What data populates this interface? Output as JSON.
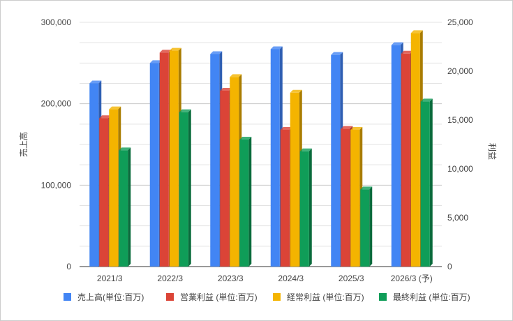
{
  "chart_data": {
    "type": "bar",
    "title": "",
    "categories": [
      "2021/3",
      "2022/3",
      "2023/3",
      "2024/3",
      "2025/3",
      "2026/3 (予)"
    ],
    "ylabel": "売上高",
    "y2label": "利益",
    "ylim": [
      0,
      300000
    ],
    "y2lim": [
      0,
      25000
    ],
    "yticks": [
      "0",
      "100,000",
      "200,000",
      "300,000"
    ],
    "y2ticks": [
      "0",
      "5,000",
      "10,000",
      "15,000",
      "20,000",
      "25,000"
    ],
    "grid": true,
    "legend_position": "bottom",
    "series": [
      {
        "name": "売上高(単位:百万)",
        "axis": "left",
        "color": "#4285f4",
        "side": "#2f5fb3",
        "values": [
          225000,
          250000,
          261000,
          267000,
          260000,
          272000
        ]
      },
      {
        "name": "営業利益 (単位:百万)",
        "axis": "right",
        "color": "#db4437",
        "side": "#9c2f26",
        "values": [
          15200,
          21900,
          18000,
          14000,
          14100,
          21800
        ]
      },
      {
        "name": "経常利益 (単位:百万)",
        "axis": "right",
        "color": "#f4b400",
        "side": "#a97c00",
        "values": [
          16100,
          22100,
          19400,
          17800,
          14000,
          23900
        ]
      },
      {
        "name": "最終利益 (単位:百万)",
        "axis": "right",
        "color": "#0f9d58",
        "side": "#0a6b3c",
        "values": [
          11900,
          15800,
          13000,
          11800,
          7900,
          16900
        ]
      }
    ]
  }
}
